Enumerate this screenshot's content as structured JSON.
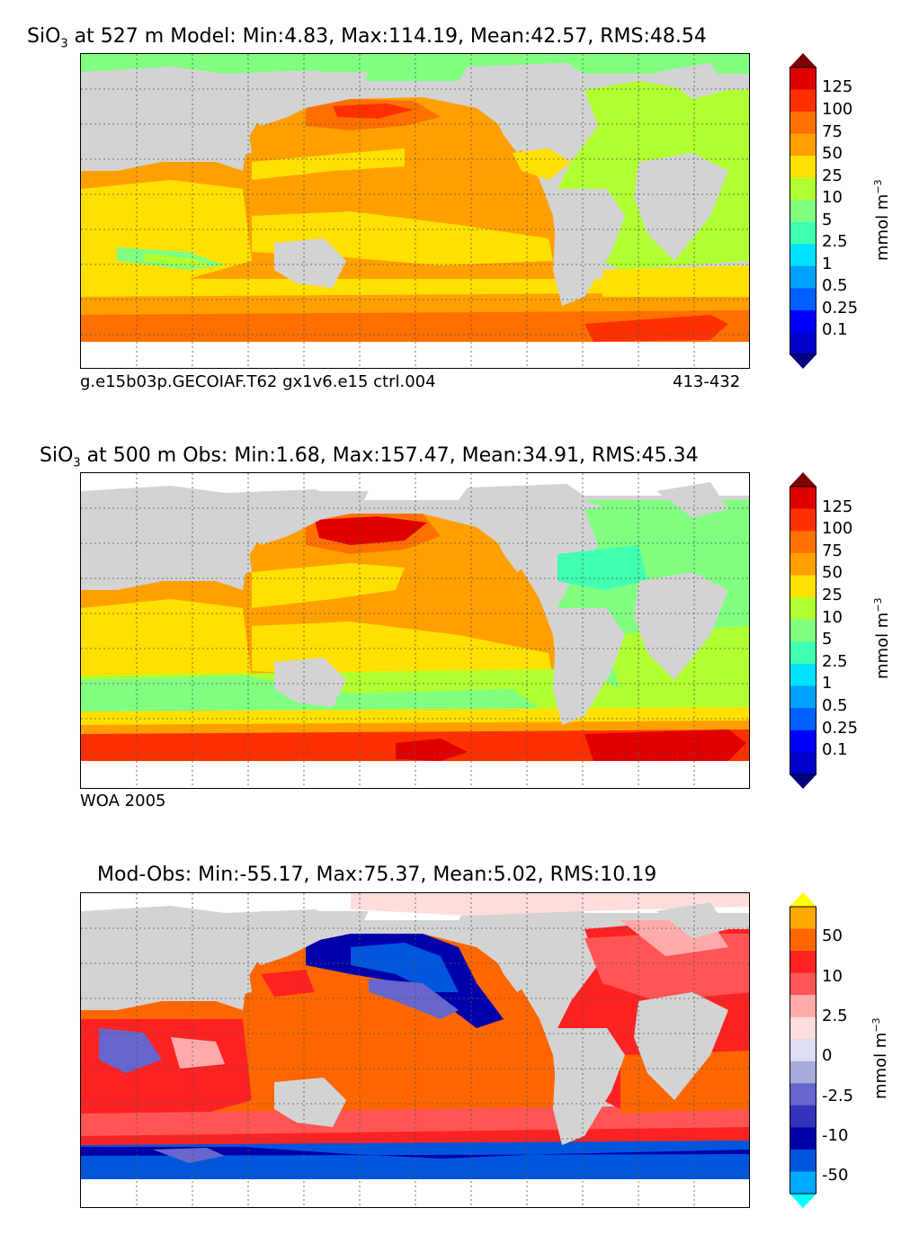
{
  "panels": [
    {
      "title_prefix": "SiO",
      "title_sub": "3",
      "title_rest": " at 527 m Model: Min:4.83, Max:114.19, Mean:42.57, RMS:48.54",
      "footer_left": "g.e15b03p.GECOIAF.T62 gx1v6.e15 ctrl.004",
      "footer_right": "413-432",
      "colorbar_labels": [
        "125",
        "100",
        "75",
        "50",
        "25",
        "10",
        "5",
        "2.5",
        "1",
        "0.5",
        "0.25",
        "0.1"
      ],
      "units": "mmol m",
      "units_exp": "−3"
    },
    {
      "title_prefix": "SiO",
      "title_sub": "3",
      "title_rest": " at 500 m Obs: Min:1.68, Max:157.47, Mean:34.91, RMS:45.34",
      "footer_left": "WOA 2005",
      "colorbar_labels": [
        "125",
        "100",
        "75",
        "50",
        "25",
        "10",
        "5",
        "2.5",
        "1",
        "0.5",
        "0.25",
        "0.1"
      ],
      "units": "mmol m",
      "units_exp": "−3"
    },
    {
      "title": "Mod-Obs: Min:-55.17, Max:75.37, Mean:5.02, RMS:10.19",
      "colorbar_labels": [
        "50",
        "10",
        "2.5",
        "0",
        "-2.5",
        "-10",
        "-50"
      ],
      "units": "mmol m",
      "units_exp": "−3"
    }
  ],
  "colors": {
    "land": "#d3d3d3",
    "conc_scale": [
      "#00007f",
      "#0000cd",
      "#0000ff",
      "#0060ff",
      "#00a0ff",
      "#00e0ff",
      "#40ffb0",
      "#80ff80",
      "#b0ff30",
      "#ffe000",
      "#ffa000",
      "#ff7000",
      "#ff3000",
      "#e00000",
      "#7f0000"
    ],
    "diff_scale": [
      "#00ffff",
      "#00aaff",
      "#0055dd",
      "#0000aa",
      "#3333bb",
      "#6666cc",
      "#aaaadd",
      "#ddddf5",
      "#ffdddd",
      "#ffaaaa",
      "#ff5555",
      "#ff2222",
      "#ff6600",
      "#ffaa00",
      "#ffff00"
    ]
  }
}
